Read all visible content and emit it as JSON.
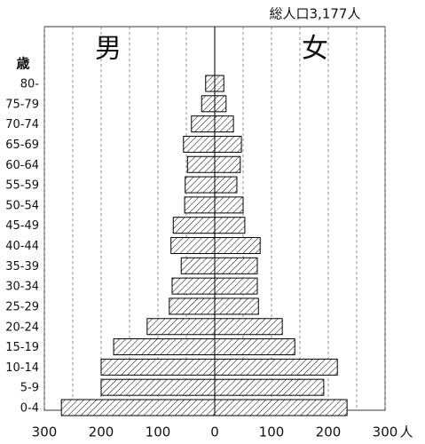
{
  "chart_data": {
    "type": "pyramid",
    "title": "総人口3,177人",
    "y_label": "歳",
    "x_unit": "人",
    "categories": [
      "0-4",
      "5-9",
      "10-14",
      "15-19",
      "20-24",
      "25-29",
      "30-34",
      "35-39",
      "40-44",
      "45-49",
      "50-54",
      "55-59",
      "60-64",
      "65-69",
      "70-74",
      "75-79",
      "80-"
    ],
    "series": [
      {
        "name": "男",
        "side": "left",
        "color": "#000000",
        "values": [
          270,
          200,
          200,
          178,
          119,
          80,
          75,
          59,
          77,
          73,
          53,
          52,
          48,
          55,
          41,
          23,
          16
        ]
      },
      {
        "name": "女",
        "side": "right",
        "color": "#000000",
        "values": [
          233,
          192,
          216,
          141,
          119,
          77,
          75,
          75,
          80,
          53,
          50,
          39,
          45,
          47,
          33,
          20,
          16
        ]
      }
    ],
    "xlim": [
      -300,
      300
    ],
    "xticks": [
      {
        "value": -300,
        "label": "300"
      },
      {
        "value": -200,
        "label": "200"
      },
      {
        "value": -100,
        "label": "100"
      },
      0,
      100,
      200,
      300
    ],
    "x_minor_ticks": [
      -250,
      -150,
      -50,
      50,
      150,
      250
    ],
    "grid": true,
    "hatch": true
  }
}
